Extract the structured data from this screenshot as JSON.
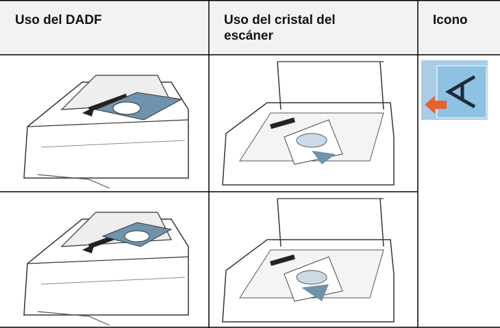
{
  "table": {
    "header": [
      "Uso del DADF",
      "Uso del cristal del escáner",
      "Icono"
    ]
  }
}
